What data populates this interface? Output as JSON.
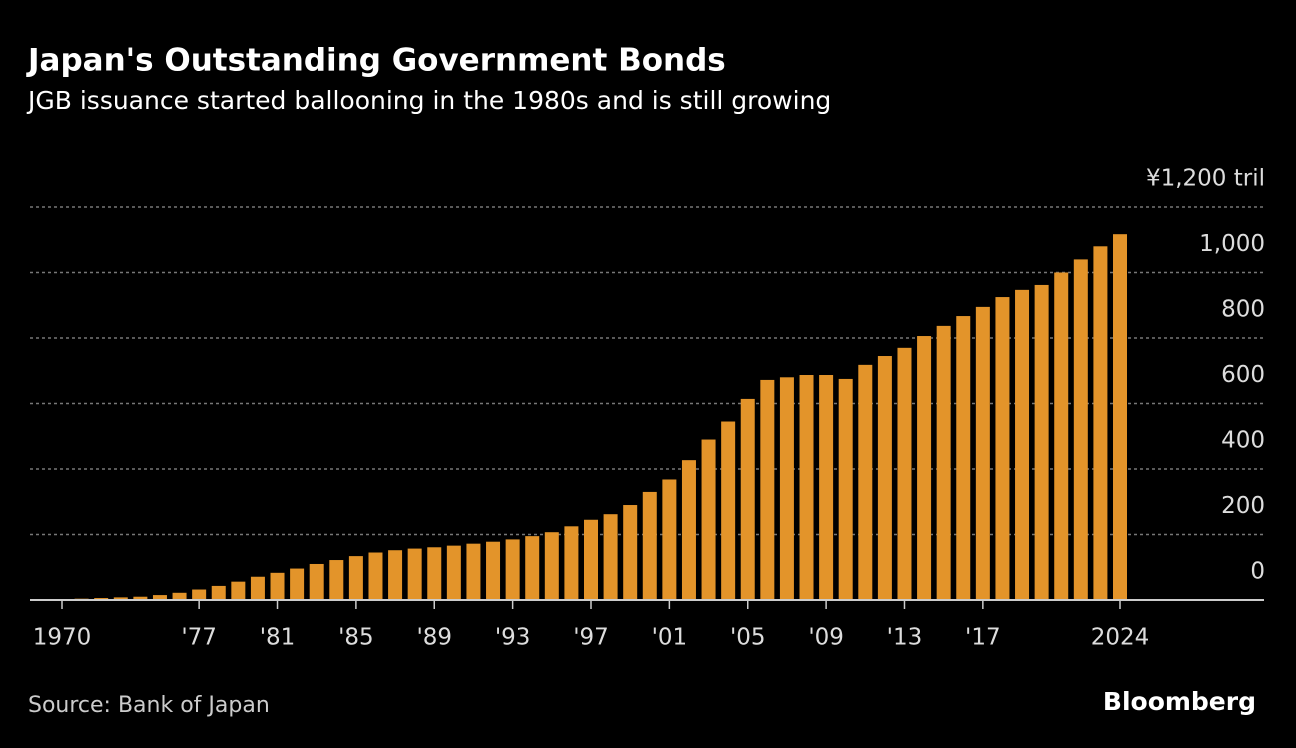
{
  "chart_data": {
    "type": "bar",
    "title": "Japan's Outstanding Government Bonds",
    "subtitle": "JGB issuance started ballooning in the 1980s and is still growing",
    "source": "Source: Bank of Japan",
    "brand": "Bloomberg",
    "categories": [
      "1970",
      null,
      null,
      null,
      null,
      null,
      null,
      "'77",
      null,
      null,
      null,
      "'81",
      null,
      null,
      null,
      "'85",
      null,
      null,
      null,
      "'89",
      null,
      null,
      null,
      "'93",
      null,
      null,
      null,
      "'97",
      null,
      null,
      null,
      "'01",
      null,
      null,
      null,
      "'05",
      null,
      null,
      null,
      "'09",
      null,
      null,
      null,
      "'13",
      null,
      null,
      null,
      "'17",
      null,
      null,
      null,
      null,
      null,
      null,
      "2024"
    ],
    "values": [
      3,
      4,
      6,
      8,
      10,
      15,
      22,
      32,
      43,
      56,
      71,
      83,
      96,
      110,
      122,
      134,
      145,
      152,
      157,
      161,
      166,
      172,
      178,
      185,
      195,
      207,
      225,
      245,
      262,
      290,
      330,
      368,
      427,
      490,
      545,
      614,
      672,
      680,
      687,
      687,
      675,
      718,
      745,
      770,
      806,
      837,
      867,
      895,
      925,
      947,
      962,
      1000,
      1040,
      1080,
      1117
    ],
    "color": "#e3942a",
    "ylim": [
      0,
      1200
    ],
    "yticks": [
      0,
      200,
      400,
      600,
      800,
      {
        "value": 1000,
        "label": "1,000"
      },
      {
        "value": 1200,
        "label": "¥1,200 tril"
      }
    ],
    "grid": true
  }
}
